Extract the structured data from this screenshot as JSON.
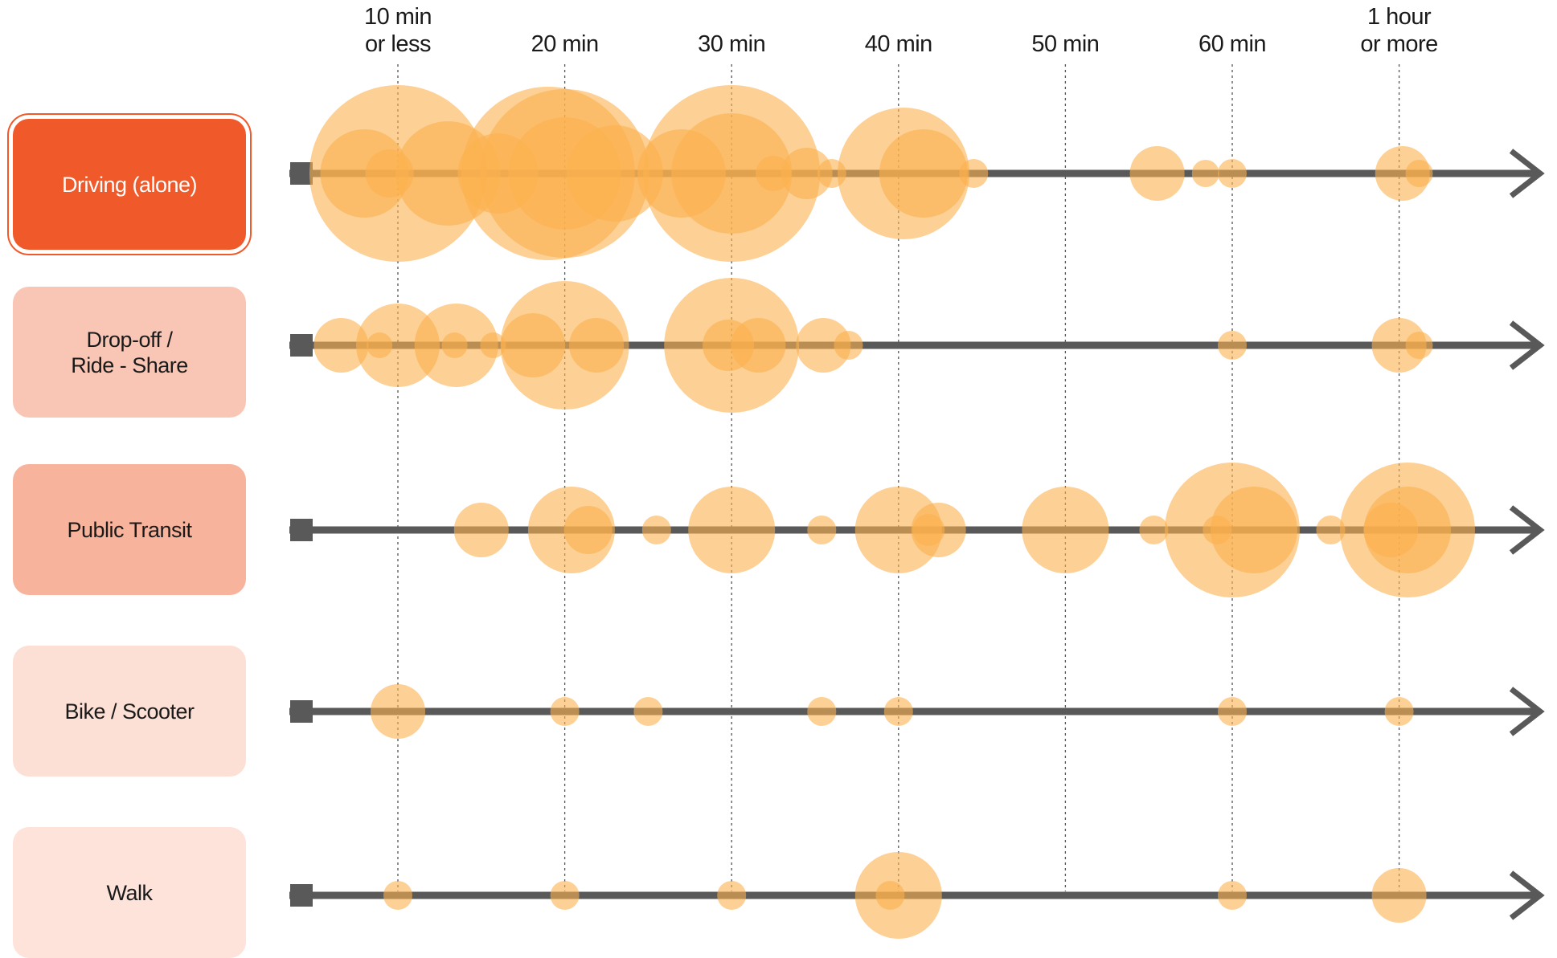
{
  "chart_data": {
    "type": "scatter",
    "title": "",
    "xlabel": "",
    "ylabel": "",
    "x_ticks": [
      {
        "value": 10,
        "label": "10 min\nor less"
      },
      {
        "value": 20,
        "label": "20 min"
      },
      {
        "value": 30,
        "label": "30 min"
      },
      {
        "value": 40,
        "label": "40 min"
      },
      {
        "value": 50,
        "label": "50 min"
      },
      {
        "value": 60,
        "label": "60 min"
      },
      {
        "value": 70,
        "label": "1 hour\nor more"
      }
    ],
    "xlim": [
      4,
      79
    ],
    "grid": "vertical dotted",
    "bubble_color": "#fbb14f",
    "axis_color": "#595959",
    "categories": [
      {
        "name": "Driving (alone)",
        "color": "#f05a2a",
        "selected": true
      },
      {
        "name": "Drop-off /\nRide - Share",
        "color": "#f9c6b6",
        "selected": false
      },
      {
        "name": "Public Transit",
        "color": "#f8b39d",
        "selected": false
      },
      {
        "name": "Bike / Scooter",
        "color": "#fde0d5",
        "selected": false
      },
      {
        "name": "Walk",
        "color": "#fde3da",
        "selected": false
      }
    ],
    "series": [
      {
        "name": "Driving (alone)",
        "points": [
          {
            "x": 10,
            "size": 110
          },
          {
            "x": 8,
            "size": 55
          },
          {
            "x": 9.5,
            "size": 30
          },
          {
            "x": 13,
            "size": 65
          },
          {
            "x": 16,
            "size": 50
          },
          {
            "x": 19,
            "size": 108
          },
          {
            "x": 20,
            "size": 105
          },
          {
            "x": 20,
            "size": 70
          },
          {
            "x": 23,
            "size": 60
          },
          {
            "x": 27,
            "size": 55
          },
          {
            "x": 30,
            "size": 110
          },
          {
            "x": 30,
            "size": 75
          },
          {
            "x": 32.5,
            "size": 22
          },
          {
            "x": 34.5,
            "size": 32
          },
          {
            "x": 36,
            "size": 18
          },
          {
            "x": 40.3,
            "size": 82
          },
          {
            "x": 41.5,
            "size": 55
          },
          {
            "x": 44.5,
            "size": 18
          },
          {
            "x": 55.5,
            "size": 34
          },
          {
            "x": 58.4,
            "size": 17
          },
          {
            "x": 60,
            "size": 18
          },
          {
            "x": 70.2,
            "size": 34
          },
          {
            "x": 71.2,
            "size": 17
          }
        ]
      },
      {
        "name": "Drop-off /\nRide - Share",
        "points": [
          {
            "x": 6.6,
            "size": 34
          },
          {
            "x": 10,
            "size": 52
          },
          {
            "x": 13.5,
            "size": 52
          },
          {
            "x": 8.9,
            "size": 16
          },
          {
            "x": 13.4,
            "size": 16
          },
          {
            "x": 15.7,
            "size": 16
          },
          {
            "x": 20,
            "size": 80
          },
          {
            "x": 18.1,
            "size": 40
          },
          {
            "x": 21.9,
            "size": 34
          },
          {
            "x": 30,
            "size": 84
          },
          {
            "x": 31.6,
            "size": 34
          },
          {
            "x": 29.8,
            "size": 32
          },
          {
            "x": 35.5,
            "size": 34
          },
          {
            "x": 37,
            "size": 18
          },
          {
            "x": 60,
            "size": 18
          },
          {
            "x": 70,
            "size": 34
          },
          {
            "x": 71.2,
            "size": 17
          }
        ]
      },
      {
        "name": "Public Transit",
        "points": [
          {
            "x": 15,
            "size": 34
          },
          {
            "x": 20.4,
            "size": 54
          },
          {
            "x": 21.4,
            "size": 30
          },
          {
            "x": 25.5,
            "size": 18
          },
          {
            "x": 30,
            "size": 54
          },
          {
            "x": 35.4,
            "size": 18
          },
          {
            "x": 40,
            "size": 54
          },
          {
            "x": 42.4,
            "size": 34
          },
          {
            "x": 41.8,
            "size": 20
          },
          {
            "x": 50,
            "size": 54
          },
          {
            "x": 55.3,
            "size": 18
          },
          {
            "x": 60,
            "size": 84
          },
          {
            "x": 61.3,
            "size": 54
          },
          {
            "x": 59.1,
            "size": 18
          },
          {
            "x": 65.9,
            "size": 18
          },
          {
            "x": 70.5,
            "size": 84
          },
          {
            "x": 70.5,
            "size": 54
          },
          {
            "x": 69.5,
            "size": 34
          }
        ]
      },
      {
        "name": "Bike / Scooter",
        "points": [
          {
            "x": 10,
            "size": 34
          },
          {
            "x": 20,
            "size": 18
          },
          {
            "x": 25,
            "size": 18
          },
          {
            "x": 35.4,
            "size": 18
          },
          {
            "x": 40,
            "size": 18
          },
          {
            "x": 60,
            "size": 18
          },
          {
            "x": 70,
            "size": 18
          }
        ]
      },
      {
        "name": "Walk",
        "points": [
          {
            "x": 10,
            "size": 18
          },
          {
            "x": 20,
            "size": 18
          },
          {
            "x": 30,
            "size": 18
          },
          {
            "x": 40,
            "size": 54
          },
          {
            "x": 39.5,
            "size": 18
          },
          {
            "x": 60,
            "size": 18
          },
          {
            "x": 70,
            "size": 34
          }
        ]
      }
    ]
  }
}
